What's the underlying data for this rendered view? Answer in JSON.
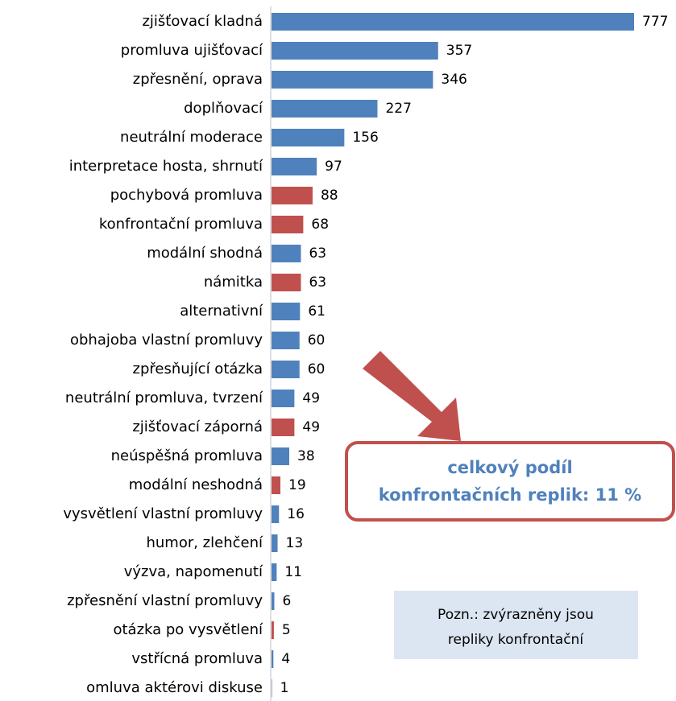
{
  "chart_data": {
    "type": "bar",
    "orientation": "horizontal",
    "categories": [
      "zjišťovací kladná",
      "promluva ujišťovací",
      "zpřesnění, oprava",
      "doplňovací",
      "neutrální moderace",
      "interpretace hosta, shrnutí",
      "pochybová promluva",
      "konfrontační promluva",
      "modální shodná",
      "námitka",
      "alternativní",
      "obhajoba vlastní promluvy",
      "zpřesňující otázka",
      "neutrální promluva, tvrzení",
      "zjišťovací záporná",
      "neúspěšná promluva",
      "modální neshodná",
      "vysvětlení vlastní promluvy",
      "humor, zlehčení",
      "výzva, napomenutí",
      "zpřesnění vlastní promluvy",
      "otázka po vysvětlení",
      "vstřícná promluva",
      "omluva aktérovi diskuse"
    ],
    "values": [
      777,
      357,
      346,
      227,
      156,
      97,
      88,
      68,
      63,
      63,
      61,
      60,
      60,
      49,
      49,
      38,
      19,
      16,
      13,
      11,
      6,
      5,
      4,
      1
    ],
    "colors": [
      "#4f81bd",
      "#4f81bd",
      "#4f81bd",
      "#4f81bd",
      "#4f81bd",
      "#4f81bd",
      "#c0504d",
      "#c0504d",
      "#4f81bd",
      "#c0504d",
      "#4f81bd",
      "#4f81bd",
      "#4f81bd",
      "#4f81bd",
      "#c0504d",
      "#4f81bd",
      "#c0504d",
      "#4f81bd",
      "#4f81bd",
      "#4f81bd",
      "#4f81bd",
      "#c0504d",
      "#4f81bd",
      "#4f81bd"
    ],
    "callout": [
      "celkový podíl",
      "konfrontačních replik: 11 %"
    ],
    "note": [
      "Pozn.: zvýrazněny jsou",
      "repliky konfrontační"
    ]
  }
}
